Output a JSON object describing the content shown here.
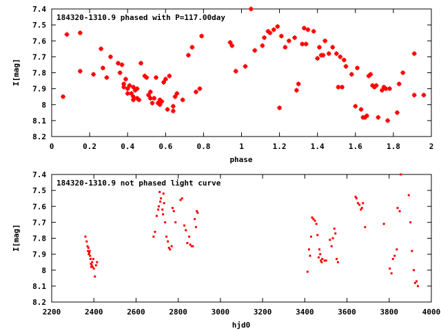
{
  "chart_data": [
    {
      "type": "scatter",
      "title": "184320-1310.9 phased with P=117.00day",
      "xlabel": "phase",
      "ylabel": "I[mag]",
      "xlim": [
        0,
        2
      ],
      "ylim": [
        7.4,
        8.2
      ],
      "y_inverted": true,
      "grid": false,
      "xticks": [
        "0",
        "0.2",
        "0.4",
        "0.6",
        "0.8",
        "1",
        "1.2",
        "1.4",
        "1.6",
        "1.8",
        "2"
      ],
      "yticks": [
        "7.4",
        "7.5",
        "7.6",
        "7.7",
        "7.8",
        "7.9",
        "8",
        "8.1",
        "8.2"
      ],
      "marker_color": "#ff0000",
      "series": [
        {
          "x": [
            0.06,
            0.08,
            0.15,
            0.15,
            0.22,
            0.26,
            0.27,
            0.29,
            0.31,
            0.35,
            0.36,
            0.37,
            0.38,
            0.38,
            0.39,
            0.4,
            0.4,
            0.41,
            0.42,
            0.43,
            0.43,
            0.43,
            0.44,
            0.45,
            0.45,
            0.46,
            0.47,
            0.49,
            0.5,
            0.51,
            0.52,
            0.52,
            0.53,
            0.54,
            0.55,
            0.56,
            0.57,
            0.57,
            0.58,
            0.59,
            0.6,
            0.61,
            0.62,
            0.64,
            0.64,
            0.65,
            0.66,
            0.69,
            0.72,
            0.74,
            0.76,
            0.78,
            0.79,
            0.94,
            0.95,
            0.97,
            1.02,
            1.05,
            1.07,
            1.11,
            1.12,
            1.14,
            1.15,
            1.17,
            1.19,
            1.2,
            1.21,
            1.23,
            1.25,
            1.28,
            1.29,
            1.3,
            1.32,
            1.33,
            1.34,
            1.35,
            1.38,
            1.4,
            1.41,
            1.42,
            1.43,
            1.44,
            1.46,
            1.48,
            1.5,
            1.51,
            1.52,
            1.53,
            1.54,
            1.55,
            1.58,
            1.6,
            1.61,
            1.63,
            1.64,
            1.65,
            1.66,
            1.67,
            1.68,
            1.69,
            1.7,
            1.71,
            1.72,
            1.74,
            1.75,
            1.76,
            1.77,
            1.78,
            1.82,
            1.83,
            1.85,
            1.91,
            1.91,
            1.96
          ],
          "y": [
            7.95,
            7.56,
            7.79,
            7.55,
            7.81,
            7.65,
            7.77,
            7.83,
            7.7,
            7.74,
            7.8,
            7.75,
            7.87,
            7.89,
            7.84,
            7.9,
            7.93,
            7.88,
            7.93,
            7.95,
            7.89,
            7.97,
            7.91,
            7.96,
            7.9,
            7.97,
            7.74,
            7.82,
            7.83,
            7.94,
            7.96,
            7.92,
            7.99,
            7.96,
            7.83,
            7.99,
            8.0,
            7.97,
            7.98,
            7.86,
            7.84,
            8.03,
            7.82,
            8.01,
            8.04,
            7.95,
            7.93,
            7.97,
            7.69,
            7.64,
            7.92,
            7.9,
            7.57,
            7.61,
            7.63,
            7.79,
            7.76,
            7.4,
            7.66,
            7.63,
            7.58,
            7.54,
            7.55,
            7.53,
            7.51,
            8.02,
            7.57,
            7.64,
            7.6,
            7.58,
            7.91,
            7.87,
            7.62,
            7.52,
            7.62,
            7.53,
            7.54,
            7.71,
            7.64,
            7.69,
            7.69,
            7.6,
            7.68,
            7.64,
            7.68,
            7.89,
            7.7,
            7.89,
            7.72,
            7.76,
            7.81,
            8.01,
            7.77,
            8.03,
            8.08,
            8.08,
            8.07,
            7.82,
            7.81,
            7.88,
            7.89,
            7.88,
            8.08,
            7.91,
            7.89,
            7.9,
            8.1,
            7.9,
            8.05,
            7.87,
            7.8,
            7.68,
            7.94,
            7.94
          ]
        }
      ]
    },
    {
      "type": "scatter",
      "title": "184320-1310.9 not phased light curve",
      "xlabel": "hjd0",
      "ylabel": "I[mag]",
      "xlim": [
        2200,
        4000
      ],
      "ylim": [
        7.4,
        8.2
      ],
      "y_inverted": true,
      "grid": false,
      "xticks": [
        "2200",
        "2400",
        "2600",
        "2800",
        "3000",
        "3200",
        "3400",
        "3600",
        "3800",
        "4000"
      ],
      "yticks": [
        "7.4",
        "7.5",
        "7.6",
        "7.7",
        "7.8",
        "7.9",
        "8",
        "8.1",
        "8.2"
      ],
      "marker_color": "#ff0000",
      "series": [
        {
          "x": [
            2360,
            2366,
            2370,
            2372,
            2374,
            2376,
            2378,
            2380,
            2382,
            2384,
            2386,
            2388,
            2390,
            2392,
            2394,
            2397,
            2400,
            2405,
            2410,
            2415,
            2683,
            2690,
            2698,
            2705,
            2708,
            2712,
            2715,
            2718,
            2725,
            2728,
            2730,
            2733,
            2738,
            2744,
            2751,
            2756,
            2761,
            2769,
            2773,
            2779,
            2787,
            2811,
            2818,
            2829,
            2836,
            2843,
            2852,
            2857,
            2864,
            2869,
            2878,
            2884,
            2888,
            2892,
            3413,
            3420,
            3425,
            3430,
            3435,
            3441,
            3448,
            3455,
            3460,
            3466,
            3469,
            3473,
            3476,
            3480,
            3483,
            3494,
            3501,
            3519,
            3527,
            3533,
            3540,
            3545,
            3551,
            3557,
            3641,
            3645,
            3652,
            3659,
            3666,
            3671,
            3676,
            3686,
            3775,
            3803,
            3811,
            3818,
            3826,
            3836,
            3840,
            3850,
            3855,
            3893,
            3901,
            3908,
            3917,
            3923,
            3930,
            3936
          ],
          "y": [
            7.79,
            7.82,
            7.85,
            7.88,
            7.86,
            7.9,
            7.89,
            7.88,
            7.91,
            7.93,
            7.96,
            7.98,
            7.97,
            7.95,
            7.98,
            7.93,
            7.99,
            8.04,
            7.97,
            7.95,
            7.79,
            7.76,
            7.66,
            7.62,
            7.6,
            7.51,
            7.57,
            7.55,
            7.62,
            7.65,
            7.52,
            7.58,
            7.7,
            7.79,
            7.82,
            7.86,
            7.87,
            7.85,
            7.61,
            7.63,
            7.7,
            7.56,
            7.55,
            7.72,
            7.75,
            7.83,
            7.79,
            7.84,
            7.85,
            7.85,
            7.68,
            7.73,
            7.63,
            7.64,
            8.01,
            7.87,
            7.91,
            7.79,
            7.67,
            7.68,
            7.69,
            7.71,
            7.78,
            7.92,
            7.87,
            7.9,
            7.94,
            7.95,
            7.93,
            7.94,
            7.94,
            7.81,
            7.85,
            7.8,
            7.74,
            7.77,
            7.93,
            7.95,
            7.54,
            7.55,
            7.58,
            7.59,
            7.62,
            7.61,
            7.58,
            7.73,
            7.71,
            7.99,
            8.02,
            7.93,
            7.91,
            7.87,
            7.61,
            7.63,
            7.4,
            7.53,
            7.7,
            7.88,
            8.0,
            8.08,
            8.07,
            8.1
          ]
        }
      ]
    }
  ]
}
